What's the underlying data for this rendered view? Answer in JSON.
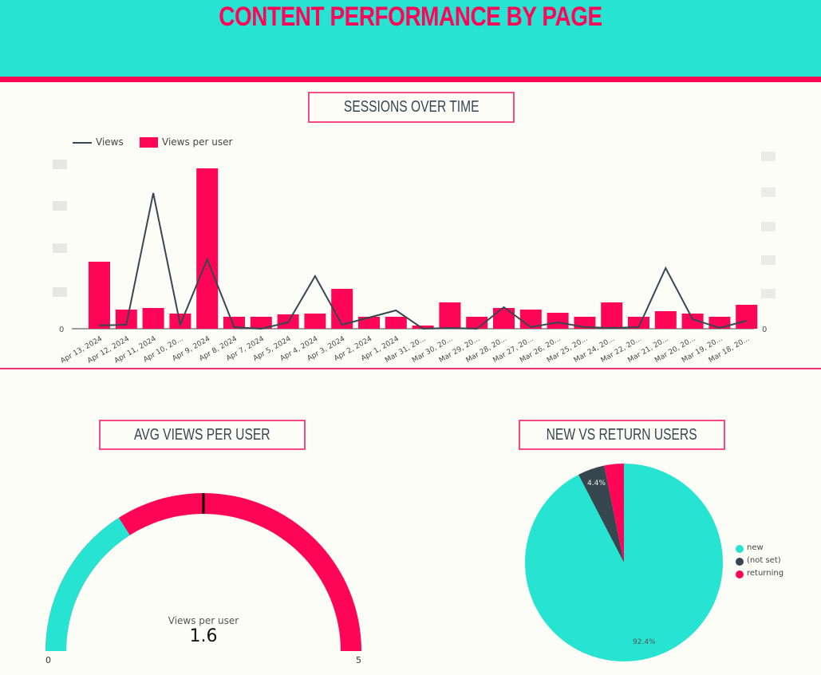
{
  "header": {
    "title": "CONTENT PERFORMANCE BY PAGE"
  },
  "colors": {
    "teal": "#27e3d2",
    "pink": "#ff0558",
    "dark": "#37474f",
    "background": "#fdfdf8"
  },
  "sessions": {
    "title": "SESSIONS OVER TIME",
    "legend": {
      "line_label": "Views",
      "bar_label": "Views per user"
    },
    "left_axis_zero": "0",
    "right_axis_zero": "0"
  },
  "gauge": {
    "title": "AVG VIEWS PER USER",
    "metric_label": "Views per user",
    "value": "1.6",
    "min_label": "0",
    "max_label": "5"
  },
  "pie": {
    "title": "NEW VS RETURN USERS",
    "legend": [
      {
        "label": "new",
        "color": "#27e3d2"
      },
      {
        "label": "(not set)",
        "color": "#37474f"
      },
      {
        "label": "returning",
        "color": "#ff0558"
      }
    ],
    "slice_labels": {
      "new": "92.4%",
      "not_set": "4.4%"
    }
  },
  "chart_data": [
    {
      "type": "bar",
      "title": "SESSIONS OVER TIME",
      "categories": [
        "Apr 13, 2024",
        "Apr 12, 2024",
        "Apr 11, 2024",
        "Apr 10, 20...",
        "Apr 9, 2024",
        "Apr 8, 2024",
        "Apr 7, 2024",
        "Apr 5, 2024",
        "Apr 4, 2024",
        "Apr 3, 2024",
        "Apr 2, 2024",
        "Apr 1, 2024",
        "Mar 31, 20...",
        "Mar 30, 20...",
        "Mar 29, 20...",
        "Mar 28, 20...",
        "Mar 27, 20...",
        "Mar 26, 20...",
        "Mar 25, 20...",
        "Mar 24, 20...",
        "Mar 22, 20...",
        "Mar 21, 20...",
        "Mar 20, 20...",
        "Mar 19, 20...",
        "Mar 18, 20..."
      ],
      "series": [
        {
          "name": "Views",
          "kind": "line",
          "axis": "right",
          "color": "#37474f",
          "values": [
            4,
            5,
            170,
            5,
            87,
            2,
            0,
            8,
            66,
            5,
            14,
            23,
            0,
            1,
            0,
            27,
            2,
            8,
            2,
            1,
            2,
            76,
            12,
            1,
            10
          ]
        },
        {
          "name": "Views per user",
          "kind": "bar",
          "axis": "left",
          "color": "#ff0558",
          "values": [
            84,
            24,
            26,
            19,
            201,
            15,
            15,
            18,
            19,
            50,
            15,
            15,
            4,
            33,
            15,
            26,
            24,
            20,
            15,
            33,
            15,
            22,
            19,
            15,
            30
          ]
        }
      ],
      "xlabel": "",
      "ylabel": "",
      "y_tick_labels_visible": [
        "0"
      ],
      "y2_tick_labels_visible": [
        "0"
      ],
      "note": "Y-axis tick values are blurred/redacted; values are relative pixel heights",
      "legend_position": "top-left",
      "grid": false
    },
    {
      "type": "gauge",
      "title": "AVG VIEWS PER USER",
      "label": "Views per user",
      "value": 1.6,
      "range": [
        0,
        5
      ],
      "target": 2.5
    },
    {
      "type": "pie",
      "title": "NEW VS RETURN USERS",
      "categories": [
        "new",
        "(not set)",
        "returning"
      ],
      "values": [
        92.4,
        4.4,
        3.2
      ],
      "labels_shown": [
        "92.4%",
        "4.4%",
        ""
      ],
      "legend_position": "right"
    }
  ]
}
